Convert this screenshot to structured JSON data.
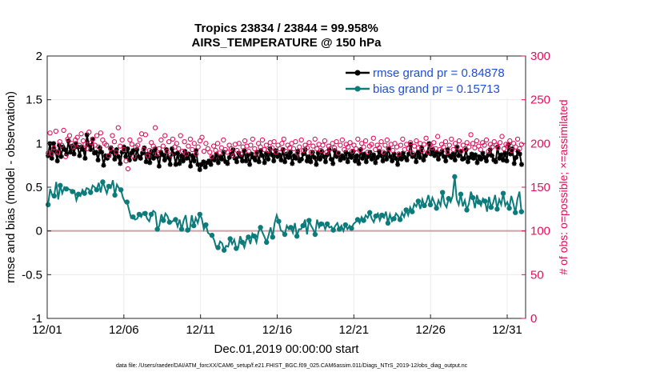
{
  "chart_data": {
    "type": "line",
    "title": "Tropics 23834 / 23844 = 99.958%",
    "subtitle": "AIRS_TEMPERATURE @ 150 hPa",
    "xlabel": "Dec.01,2019 00:00:00 start",
    "ylabel": "rmse and bias (model - observation)",
    "ylabel_right": "# of obs: o=possible; ×=assimilated",
    "footnote": "data file: /Users/raeder/DAI/ATM_forcXX/CAM6_setup/f.e21.FHIST_BGC.f09_025.CAM6assim.011/Diags_NTrS_2019-12/obs_diag_output.nc",
    "xlim": [
      0,
      31.2
    ],
    "ylim": [
      -1,
      2
    ],
    "ylim_right": [
      0,
      300
    ],
    "x_ticks": [
      0,
      5,
      10,
      15,
      20,
      25,
      30
    ],
    "x_tick_labels": [
      "12/01",
      "12/06",
      "12/11",
      "12/16",
      "12/21",
      "12/26",
      "12/31"
    ],
    "y_ticks": [
      -1,
      -0.5,
      0,
      0.5,
      1,
      1.5,
      2
    ],
    "y_tick_labels": [
      "-1",
      "-0.5",
      "0",
      "0.5",
      "1",
      "1.5",
      "2"
    ],
    "y_right_ticks": [
      0,
      50,
      100,
      150,
      200,
      250,
      300
    ],
    "y_right_tick_labels": [
      "0",
      "50",
      "100",
      "150",
      "200",
      "250",
      "300"
    ],
    "legend": [
      {
        "label": "rmse grand pr = 0.84878",
        "color": "#000000"
      },
      {
        "label": "bias grand pr = 0.15713",
        "color": "#0b7b7b"
      }
    ],
    "legend_position": "top-right",
    "grid": true,
    "zero_line": true,
    "series": [
      {
        "name": "rmse",
        "color": "#000000",
        "values": [
          0.86,
          1.0,
          0.83,
          1.0,
          0.91,
          0.8,
          0.98,
          0.85,
          0.96,
          0.93,
          0.88,
          1.03,
          0.9,
          0.97,
          0.88,
          1.0,
          0.96,
          0.86,
          0.96,
          0.93,
          0.83,
          1.1,
          0.98,
          0.93,
          1.05,
          0.89,
          0.9,
          0.81,
          0.95,
          0.9,
          0.75,
          0.86,
          0.83,
          0.86,
          0.95,
          0.9,
          0.82,
          0.93,
          0.85,
          0.77,
          0.9,
          0.96,
          0.85,
          0.94,
          0.81,
          0.89,
          0.92,
          0.82,
          0.93,
          0.85,
          0.83,
          0.89,
          0.95,
          0.79,
          0.88,
          0.78,
          0.91,
          0.83,
          0.94,
          0.85,
          0.74,
          0.9,
          0.87,
          0.81,
          0.93,
          0.84,
          0.76,
          0.94,
          0.88,
          0.76,
          0.89,
          0.77,
          0.86,
          0.8,
          0.91,
          0.83,
          0.88,
          0.74,
          0.86,
          0.8,
          0.92,
          0.76,
          0.7,
          0.76,
          0.79,
          0.73,
          0.78,
          0.8,
          0.76,
          0.84,
          0.81,
          0.88,
          0.78,
          0.85,
          0.82,
          0.9,
          0.79,
          0.77,
          0.84,
          0.88,
          0.93,
          0.83,
          0.79,
          0.89,
          0.85,
          0.8,
          0.92,
          0.8,
          0.87,
          0.76,
          0.88,
          0.84,
          0.81,
          0.9,
          0.79,
          0.92,
          0.86,
          0.78,
          0.89,
          0.82,
          0.94,
          0.87,
          0.8,
          0.92,
          0.85,
          0.87,
          0.81,
          0.93,
          0.79,
          0.88,
          0.84,
          0.9,
          0.77,
          0.86,
          0.83,
          0.91,
          0.8,
          0.82,
          0.88,
          0.93,
          0.8,
          0.85,
          0.79,
          0.9,
          0.84,
          0.76,
          0.89,
          0.82,
          0.91,
          0.85,
          0.79,
          0.87,
          0.93,
          0.82,
          0.77,
          0.92,
          0.85,
          0.89,
          0.81,
          0.86,
          0.83,
          0.9,
          0.79,
          0.88,
          0.84,
          0.91,
          0.8,
          0.86,
          0.77,
          0.93,
          0.83,
          0.88,
          0.79,
          0.85,
          0.9,
          0.82,
          0.87,
          0.78,
          0.84,
          0.91,
          0.86,
          0.8,
          0.89,
          0.82,
          0.94,
          0.85,
          0.8,
          0.88,
          0.83,
          0.76,
          0.87,
          0.82,
          0.89,
          0.84,
          0.81,
          0.88,
          0.99,
          0.85,
          0.87,
          0.79,
          0.9,
          0.84,
          0.95,
          0.81,
          0.86,
          0.89,
          1.0,
          0.88,
          0.93,
          0.86,
          0.9,
          0.82,
          0.88,
          0.91,
          0.85,
          0.8,
          0.93,
          0.86,
          0.84,
          0.88,
          0.81,
          0.96,
          0.86,
          0.91,
          0.82,
          0.83,
          0.93,
          0.79,
          0.84,
          0.88,
          0.83,
          0.87,
          0.78,
          0.85,
          0.82,
          0.89,
          0.84,
          0.8,
          0.87,
          0.93,
          0.86,
          0.81,
          0.79,
          0.96,
          0.83,
          0.87,
          0.81,
          0.89,
          0.8,
          0.99,
          0.88,
          0.94,
          0.77,
          0.84,
          0.91,
          0.88,
          0.76
        ]
      },
      {
        "name": "bias",
        "color": "#0b7b7b",
        "values": [
          0.3,
          0.48,
          0.41,
          0.4,
          0.56,
          0.36,
          0.52,
          0.43,
          0.5,
          0.48,
          0.48,
          0.47,
          0.45,
          0.46,
          0.35,
          0.42,
          0.4,
          0.47,
          0.43,
          0.49,
          0.48,
          0.44,
          0.52,
          0.5,
          0.47,
          0.55,
          0.44,
          0.56,
          0.5,
          0.43,
          0.51,
          0.49,
          0.58,
          0.41,
          0.53,
          0.49,
          0.47,
          0.38,
          0.33,
          0.33,
          0.24,
          0.15,
          0.16,
          0.13,
          0.14,
          0.19,
          0.16,
          0.21,
          0.2,
          0.14,
          0.11,
          0.19,
          0.23,
          0.21,
          0.02,
          0.06,
          0.19,
          0.12,
          0.2,
          0.17,
          0.1,
          0.1,
          0.12,
          0.13,
          0.05,
          0.13,
          0.02,
          0.12,
          0.18,
          0.01,
          0.01,
          0.18,
          0.06,
          0.15,
          0.09,
          0.19,
          0.14,
          0.02,
          0.07,
          -0.02,
          -0.04,
          -0.05,
          -0.1,
          -0.18,
          -0.19,
          -0.12,
          -0.14,
          -0.22,
          -0.17,
          -0.18,
          -0.09,
          -0.15,
          -0.1,
          -0.2,
          -0.19,
          -0.06,
          -0.13,
          -0.19,
          -0.1,
          -0.07,
          -0.15,
          -0.03,
          -0.06,
          -0.13,
          -0.01,
          0.04,
          -0.02,
          -0.07,
          -0.13,
          -0.05,
          0.04,
          -0.07,
          0.09,
          0.18,
          0.11,
          0.01,
          -0.01,
          -0.04,
          0.06,
          0.02,
          0.04,
          -0.02,
          0.09,
          -0.06,
          0.02,
          0.02,
          0.06,
          0.13,
          -0.04,
          0.12,
          0.06,
          0.02,
          -0.04,
          0.13,
          0.04,
          0.08,
          0.09,
          0.02,
          0.08,
          0.04,
          0.05,
          0.01,
          0.06,
          0.09,
          0.02,
          0.06,
          0.0,
          0.07,
          0.02,
          0.06,
          0.03,
          0.08,
          0.1,
          0.13,
          0.09,
          0.16,
          0.12,
          0.18,
          0.15,
          0.21,
          0.14,
          0.1,
          0.17,
          0.2,
          0.12,
          0.18,
          0.15,
          0.22,
          0.09,
          0.19,
          0.11,
          0.14,
          0.2,
          0.17,
          0.13,
          0.21,
          0.16,
          0.24,
          0.18,
          0.27,
          0.22,
          0.31,
          0.28,
          0.34,
          0.25,
          0.36,
          0.29,
          0.33,
          0.41,
          0.3,
          0.38,
          0.32,
          0.26,
          0.35,
          0.29,
          0.44,
          0.31,
          0.27,
          0.37,
          0.33,
          0.4,
          0.62,
          0.36,
          0.3,
          0.42,
          0.28,
          0.35,
          0.24,
          0.31,
          0.45,
          0.38,
          0.26,
          0.41,
          0.33,
          0.29,
          0.37,
          0.34,
          0.22,
          0.39,
          0.27,
          0.32,
          0.41,
          0.25,
          0.36,
          0.3,
          0.43,
          0.29,
          0.33,
          0.26,
          0.4,
          0.31,
          0.21,
          0.36,
          0.45,
          0.22
        ]
      },
      {
        "name": "# of obs possible",
        "color": "#e0105a",
        "axis": "right",
        "values": [
          189,
          212,
          188,
          195,
          214,
          190,
          202,
          198,
          215,
          185,
          205,
          209,
          200,
          196,
          204,
          207,
          198,
          211,
          203,
          199,
          194,
          213,
          201,
          205,
          198,
          209,
          196,
          212,
          204,
          200,
          198,
          186,
          194,
          209,
          202,
          190,
          218,
          197,
          204,
          193,
          180,
          171,
          204,
          199,
          185,
          196,
          198,
          204,
          211,
          193,
          210,
          186,
          192,
          201,
          197,
          218,
          188,
          194,
          204,
          197,
          209,
          191,
          202,
          187,
          205,
          196,
          200,
          194,
          209,
          191,
          202,
          188,
          197,
          205,
          193,
          200,
          188,
          196,
          203,
          207,
          191,
          200,
          194,
          190,
          185,
          197,
          192,
          200,
          189,
          195,
          204,
          193,
          190,
          198,
          194,
          186,
          199,
          192,
          200,
          188,
          196,
          203,
          197,
          191,
          198,
          205,
          194,
          189,
          200,
          196,
          204,
          193,
          198,
          192,
          201,
          195,
          202,
          190,
          198,
          194,
          200,
          205,
          191,
          198,
          195,
          200,
          194,
          202,
          189,
          196,
          204,
          192,
          198,
          195,
          201,
          190,
          197,
          205,
          194,
          199,
          192,
          198,
          203,
          190,
          197,
          194,
          200,
          195,
          202,
          189,
          198,
          204,
          193,
          199,
          196,
          201,
          191,
          198,
          194,
          205,
          192,
          200,
          196,
          203,
          190,
          197,
          199,
          206,
          193,
          198,
          195,
          202,
          190,
          198,
          204,
          194,
          199,
          192,
          200,
          196,
          188,
          198,
          205,
          193,
          199,
          194,
          201,
          189,
          197,
          203,
          195,
          200,
          192,
          199,
          206,
          190,
          198,
          195,
          201,
          194,
          208,
          193,
          199,
          196,
          202,
          190,
          198,
          205,
          193,
          200,
          196,
          203,
          191,
          198,
          194,
          201,
          196,
          210,
          200,
          195,
          203,
          197,
          193,
          201,
          198,
          204,
          191,
          199,
          196,
          202,
          198,
          195,
          201,
          208,
          194,
          199,
          197,
          203,
          192,
          200,
          196,
          205,
          194,
          199
        ]
      }
    ]
  }
}
